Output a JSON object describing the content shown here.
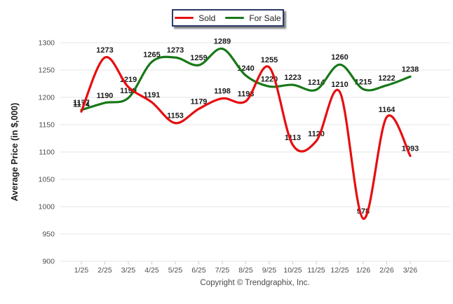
{
  "chart_data": {
    "type": "line",
    "title": "",
    "xlabel": "",
    "ylabel": "Average Price (in $,000)",
    "categories": [
      "1/25",
      "2/25",
      "3/25",
      "4/25",
      "5/25",
      "6/25",
      "7/25",
      "8/25",
      "9/25",
      "10/25",
      "11/25",
      "12/25",
      "1/26",
      "2/26",
      "3/26"
    ],
    "series": [
      {
        "name": "Sold",
        "color": "#e60e10",
        "values": [
          1174,
          1273,
          1219,
          1191,
          1153,
          1179,
          1198,
          1193,
          1255,
          1113,
          1120,
          1210,
          978,
          1164,
          1093
        ]
      },
      {
        "name": "For Sale",
        "color": "#187818",
        "values": [
          1177,
          1190,
          1199,
          1265,
          1273,
          1259,
          1289,
          1240,
          1220,
          1223,
          1214,
          1260,
          1215,
          1222,
          1238
        ]
      }
    ],
    "ylim": [
      900,
      1300
    ],
    "yticks": [
      1300,
      1250,
      1200,
      1150,
      1100,
      1050,
      1000,
      950,
      900
    ],
    "grid": "horizontal",
    "gridline_color": "#e4e4e4",
    "tick_color": "#c9c9c9",
    "legend_position": "top-center",
    "footer": "Copyright © Trendgraphix, Inc."
  }
}
